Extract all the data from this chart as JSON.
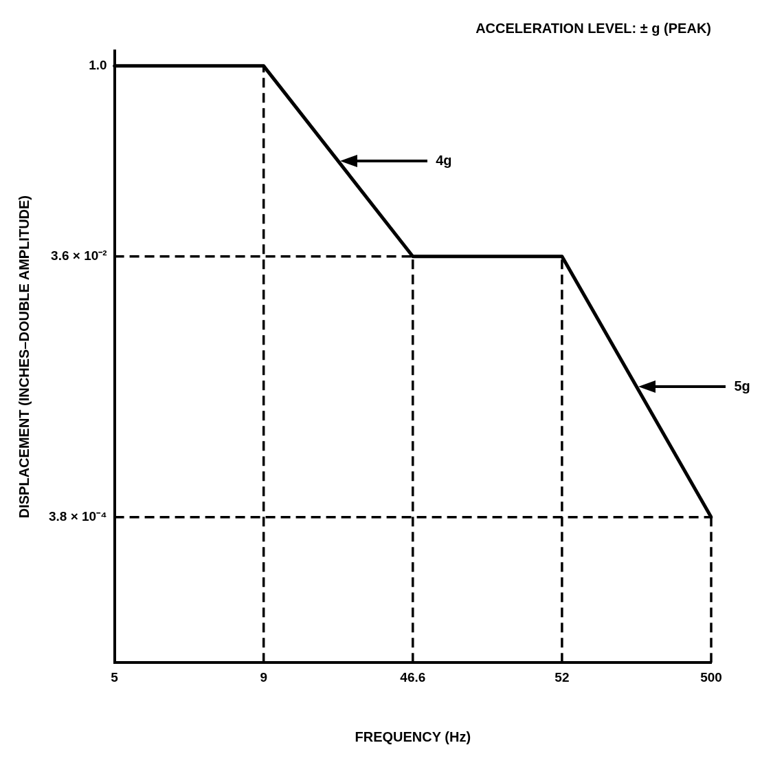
{
  "chart_data": {
    "type": "line",
    "title": "ACCELERATION LEVEL: ± g (PEAK)",
    "xlabel": "FREQUENCY (Hz)",
    "ylabel": "DISPLACEMENT (INCHES–DOUBLE AMPLITUDE)",
    "categories": [
      "5",
      "9",
      "46.6",
      "52",
      "500"
    ],
    "series": [
      {
        "color": "#000000",
        "values": [
          1.0,
          1.0,
          0.036,
          0.036,
          0.00038
        ]
      }
    ],
    "log": "y",
    "ylim": [
      3e-05,
      1.3
    ],
    "yticks": [
      {
        "value": 1.0,
        "label": "1.0"
      },
      {
        "value": 0.036,
        "label": "3.6 × 10⁻²"
      },
      {
        "value": 0.00038,
        "label": "3.8 × 10⁻⁴"
      }
    ],
    "ref_lines": [
      {
        "axis": "x",
        "value": "9",
        "line_style": "dashed"
      },
      {
        "axis": "x",
        "value": "46.6",
        "line_style": "dashed"
      },
      {
        "axis": "x",
        "value": "52",
        "line_style": "dashed"
      },
      {
        "axis": "x",
        "value": "500",
        "line_style": "dashed"
      },
      {
        "axis": "y",
        "value": 0.036,
        "line_style": "dashed"
      },
      {
        "axis": "y",
        "value": 0.00038,
        "line_style": "dashed"
      }
    ],
    "annotations": [
      "4g",
      "5g"
    ],
    "grid": false,
    "legend": false,
    "marker": "none",
    "line_style": "solid"
  }
}
